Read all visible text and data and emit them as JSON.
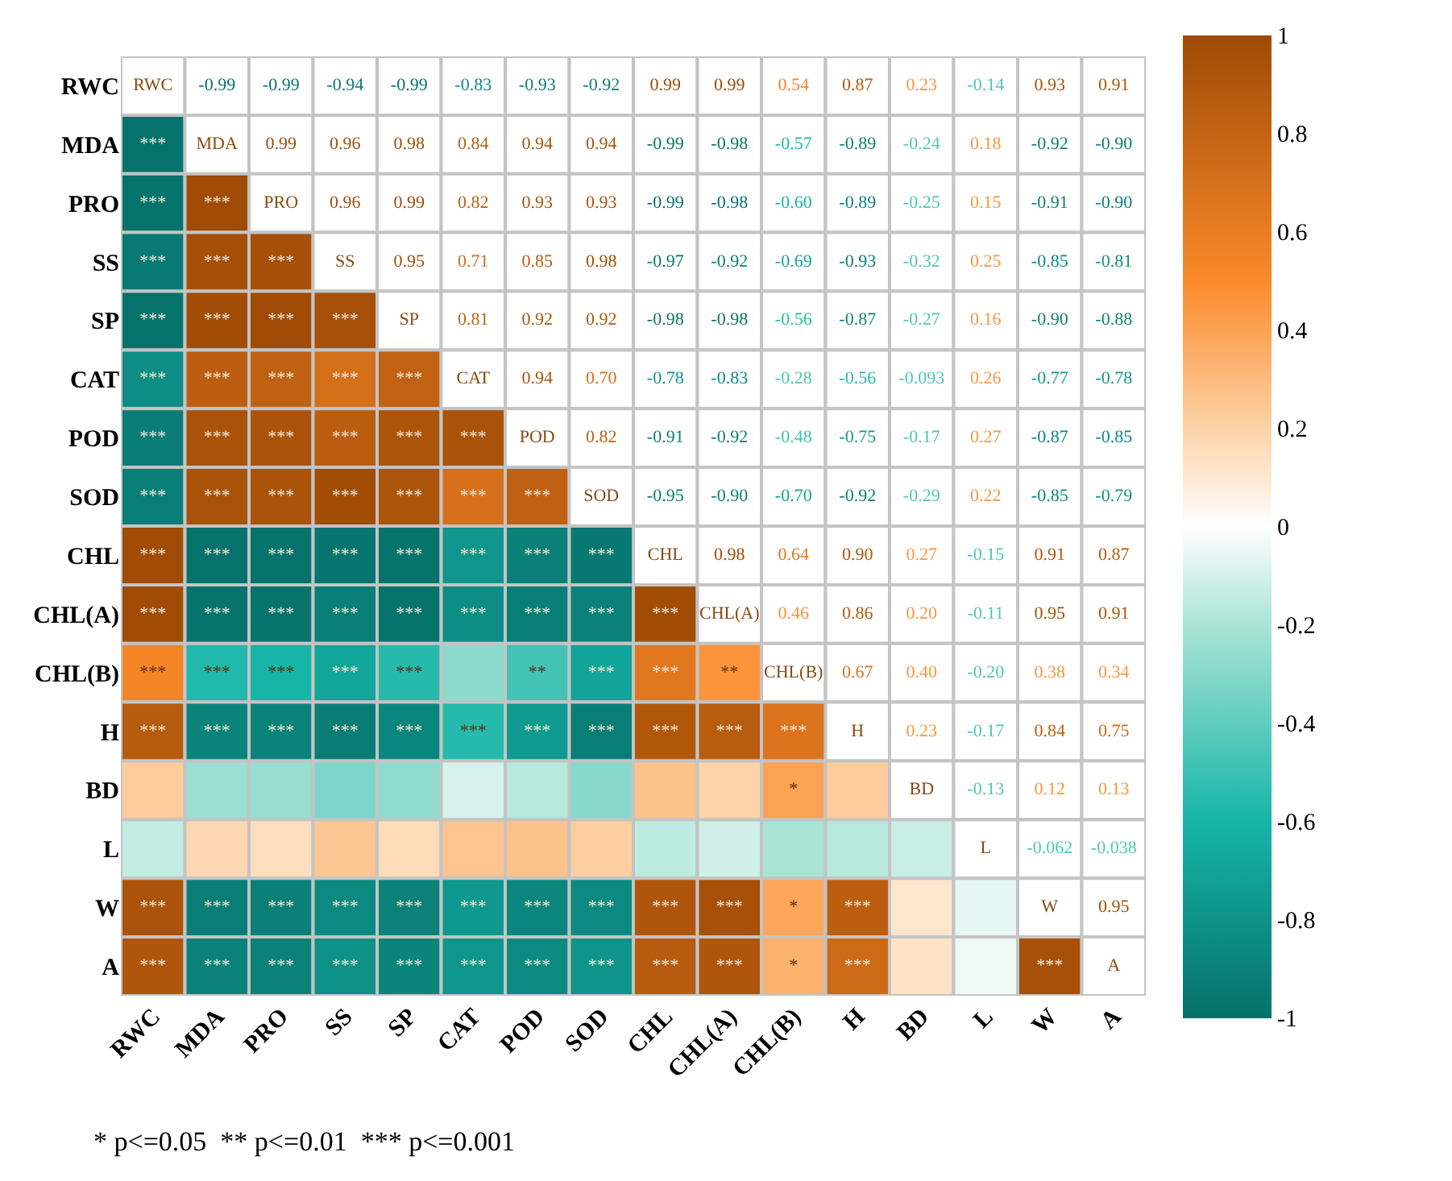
{
  "chart_data": {
    "type": "heatmap",
    "categories": [
      "RWC",
      "MDA",
      "PRO",
      "SS",
      "SP",
      "CAT",
      "POD",
      "SOD",
      "CHL",
      "CHL(A)",
      "CHL(B)",
      "H",
      "BD",
      "L",
      "W",
      "A"
    ],
    "y_categories": [
      "RWC",
      "MDA",
      "PRO",
      "SS",
      "SP",
      "CAT",
      "POD",
      "SOD",
      "CHL",
      "CHL(A)",
      "CHL(B)",
      "H",
      "BD",
      "L",
      "W",
      "A"
    ],
    "cells": [
      [
        null,
        null,
        null,
        null,
        null,
        null,
        null,
        null,
        null,
        null,
        null,
        null,
        null,
        null,
        null,
        null
      ],
      [
        -0.99,
        null,
        null,
        null,
        null,
        null,
        null,
        null,
        null,
        null,
        null,
        null,
        null,
        null,
        null,
        null
      ],
      [
        -0.99,
        0.99,
        null,
        null,
        null,
        null,
        null,
        null,
        null,
        null,
        null,
        null,
        null,
        null,
        null,
        null
      ],
      [
        -0.94,
        0.96,
        0.96,
        null,
        null,
        null,
        null,
        null,
        null,
        null,
        null,
        null,
        null,
        null,
        null,
        null
      ],
      [
        -0.99,
        0.98,
        0.99,
        0.95,
        null,
        null,
        null,
        null,
        null,
        null,
        null,
        null,
        null,
        null,
        null,
        null
      ],
      [
        -0.83,
        0.84,
        0.82,
        0.71,
        0.81,
        null,
        null,
        null,
        null,
        null,
        null,
        null,
        null,
        null,
        null,
        null
      ],
      [
        -0.93,
        0.94,
        0.93,
        0.85,
        0.92,
        0.94,
        null,
        null,
        null,
        null,
        null,
        null,
        null,
        null,
        null,
        null
      ],
      [
        -0.92,
        0.94,
        0.93,
        0.98,
        0.92,
        0.7,
        0.82,
        null,
        null,
        null,
        null,
        null,
        null,
        null,
        null,
        null
      ],
      [
        0.99,
        -0.99,
        -0.99,
        -0.97,
        -0.98,
        -0.78,
        -0.91,
        -0.95,
        null,
        null,
        null,
        null,
        null,
        null,
        null,
        null
      ],
      [
        0.99,
        -0.98,
        -0.98,
        -0.92,
        -0.98,
        -0.83,
        -0.92,
        -0.9,
        0.98,
        null,
        null,
        null,
        null,
        null,
        null,
        null
      ],
      [
        0.54,
        -0.57,
        -0.6,
        -0.69,
        -0.56,
        -0.28,
        -0.48,
        -0.7,
        0.64,
        0.46,
        null,
        null,
        null,
        null,
        null,
        null
      ],
      [
        0.87,
        -0.89,
        -0.89,
        -0.93,
        -0.87,
        -0.56,
        -0.75,
        -0.92,
        0.9,
        0.86,
        0.67,
        null,
        null,
        null,
        null,
        null
      ],
      [
        0.23,
        -0.24,
        -0.25,
        -0.32,
        -0.27,
        -0.093,
        -0.17,
        -0.29,
        0.27,
        0.2,
        0.4,
        0.23,
        null,
        null,
        null,
        null
      ],
      [
        -0.14,
        0.18,
        0.15,
        0.25,
        0.16,
        0.26,
        0.27,
        0.22,
        -0.15,
        -0.11,
        -0.2,
        -0.17,
        -0.13,
        null,
        null,
        null
      ],
      [
        0.93,
        -0.92,
        -0.91,
        -0.85,
        -0.9,
        -0.77,
        -0.87,
        -0.85,
        0.91,
        0.95,
        0.38,
        0.84,
        0.12,
        -0.062,
        null,
        null
      ],
      [
        0.91,
        -0.9,
        -0.9,
        -0.81,
        -0.88,
        -0.78,
        -0.85,
        -0.79,
        0.87,
        0.91,
        0.34,
        0.75,
        0.13,
        -0.038,
        0.95,
        null
      ]
    ],
    "cell_labels": [
      [
        "RWC",
        "-0.99",
        "-0.99",
        "-0.94",
        "-0.99",
        "-0.83",
        "-0.93",
        "-0.92",
        "0.99",
        "0.99",
        "0.54",
        "0.87",
        "0.23",
        "-0.14",
        "0.93",
        "0.91"
      ],
      [
        "***",
        "MDA",
        "0.99",
        "0.96",
        "0.98",
        "0.84",
        "0.94",
        "0.94",
        "-0.99",
        "-0.98",
        "-0.57",
        "-0.89",
        "-0.24",
        "0.18",
        "-0.92",
        "-0.90"
      ],
      [
        "***",
        "***",
        "PRO",
        "0.96",
        "0.99",
        "0.82",
        "0.93",
        "0.93",
        "-0.99",
        "-0.98",
        "-0.60",
        "-0.89",
        "-0.25",
        "0.15",
        "-0.91",
        "-0.90"
      ],
      [
        "***",
        "***",
        "***",
        "SS",
        "0.95",
        "0.71",
        "0.85",
        "0.98",
        "-0.97",
        "-0.92",
        "-0.69",
        "-0.93",
        "-0.32",
        "0.25",
        "-0.85",
        "-0.81"
      ],
      [
        "***",
        "***",
        "***",
        "***",
        "SP",
        "0.81",
        "0.92",
        "0.92",
        "-0.98",
        "-0.98",
        "-0.56",
        "-0.87",
        "-0.27",
        "0.16",
        "-0.90",
        "-0.88"
      ],
      [
        "***",
        "***",
        "***",
        "***",
        "***",
        "CAT",
        "0.94",
        "0.70",
        "-0.78",
        "-0.83",
        "-0.28",
        "-0.56",
        "-0.093",
        "0.26",
        "-0.77",
        "-0.78"
      ],
      [
        "***",
        "***",
        "***",
        "***",
        "***",
        "***",
        "POD",
        "0.82",
        "-0.91",
        "-0.92",
        "-0.48",
        "-0.75",
        "-0.17",
        "0.27",
        "-0.87",
        "-0.85"
      ],
      [
        "***",
        "***",
        "***",
        "***",
        "***",
        "***",
        "***",
        "SOD",
        "-0.95",
        "-0.90",
        "-0.70",
        "-0.92",
        "-0.29",
        "0.22",
        "-0.85",
        "-0.79"
      ],
      [
        "***",
        "***",
        "***",
        "***",
        "***",
        "***",
        "***",
        "***",
        "CHL",
        "0.98",
        "0.64",
        "0.90",
        "0.27",
        "-0.15",
        "0.91",
        "0.87"
      ],
      [
        "***",
        "***",
        "***",
        "***",
        "***",
        "***",
        "***",
        "***",
        "***",
        "CHL(A)",
        "0.46",
        "0.86",
        "0.20",
        "-0.11",
        "0.95",
        "0.91"
      ],
      [
        "***",
        "***",
        "***",
        "***",
        "***",
        null,
        "**",
        "***",
        "***",
        "**",
        "CHL(B)",
        "0.67",
        "0.40",
        "-0.20",
        "0.38",
        "0.34"
      ],
      [
        "***",
        "***",
        "***",
        "***",
        "***",
        "***",
        "***",
        "***",
        "***",
        "***",
        "***",
        "H",
        "0.23",
        "-0.17",
        "0.84",
        "0.75"
      ],
      [
        null,
        null,
        null,
        null,
        null,
        null,
        null,
        null,
        null,
        null,
        "*",
        null,
        "BD",
        "-0.13",
        "0.12",
        "0.13"
      ],
      [
        null,
        null,
        null,
        null,
        null,
        null,
        null,
        null,
        null,
        null,
        null,
        null,
        null,
        "L",
        "-0.062",
        "-0.038"
      ],
      [
        "***",
        "***",
        "***",
        "***",
        "***",
        "***",
        "***",
        "***",
        "***",
        "***",
        "*",
        "***",
        null,
        null,
        "W",
        "0.95"
      ],
      [
        "***",
        "***",
        "***",
        "***",
        "***",
        "***",
        "***",
        "***",
        "***",
        "***",
        "*",
        "***",
        null,
        null,
        "***",
        "A"
      ]
    ],
    "clim": [
      -1,
      1
    ],
    "cticks": [
      -1,
      -0.8,
      -0.6,
      -0.4,
      -0.2,
      0,
      0.2,
      0.4,
      0.6,
      0.8,
      1
    ],
    "annotations": [
      "* p<=0.05  ** p<=0.01  *** p<=0.001"
    ]
  }
}
